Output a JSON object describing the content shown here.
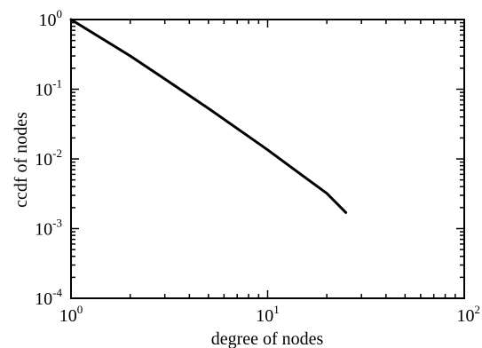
{
  "chart_data": {
    "type": "line",
    "title": "",
    "xlabel": "degree of nodes",
    "ylabel": "ccdf of nodes",
    "xscale": "log",
    "yscale": "log",
    "xlim": [
      1,
      100
    ],
    "ylim": [
      0.0001,
      1
    ],
    "grid": false,
    "legend": "none",
    "x_ticks": [
      {
        "value": 1,
        "base": "10",
        "exp": "0"
      },
      {
        "value": 10,
        "base": "10",
        "exp": "1"
      },
      {
        "value": 100,
        "base": "10",
        "exp": "2"
      }
    ],
    "y_ticks": [
      {
        "value": 1,
        "base": "10",
        "exp": "0"
      },
      {
        "value": 0.1,
        "base": "10",
        "exp": "-1"
      },
      {
        "value": 0.01,
        "base": "10",
        "exp": "-2"
      },
      {
        "value": 0.001,
        "base": "10",
        "exp": "-3"
      },
      {
        "value": 0.0001,
        "base": "10",
        "exp": "-4"
      }
    ],
    "series": [
      {
        "color": "#000000",
        "x": [
          1,
          2,
          3,
          5,
          8,
          10,
          15,
          20,
          25
        ],
        "y": [
          1,
          0.3,
          0.14,
          0.053,
          0.021,
          0.0135,
          0.0058,
          0.0032,
          0.0017
        ]
      }
    ]
  }
}
